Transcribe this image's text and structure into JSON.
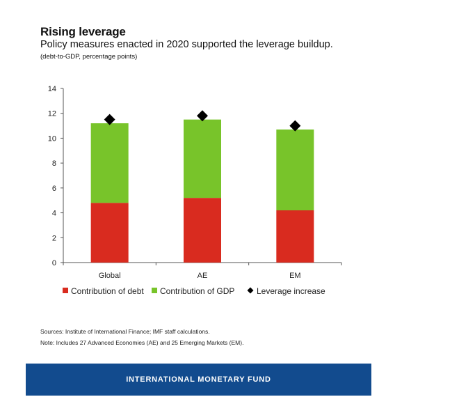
{
  "header": {
    "title": "Rising leverage",
    "subtitle": "Policy measures enacted in 2020 supported the leverage buildup.",
    "units": "(debt-to-GDP, percentage points)"
  },
  "chart_data": {
    "type": "bar",
    "stacked": true,
    "categories": [
      "Global",
      "AE",
      "EM"
    ],
    "series": [
      {
        "name": "Contribution of debt",
        "color": "#d92b1f",
        "values": [
          4.8,
          5.2,
          4.2
        ]
      },
      {
        "name": "Contribution of GDP",
        "color": "#78c42a",
        "values": [
          6.4,
          6.3,
          6.5
        ]
      }
    ],
    "markers": {
      "name": "Leverage increase",
      "color": "#000000",
      "values": [
        11.5,
        11.8,
        11.0
      ]
    },
    "ylim": [
      0,
      14
    ],
    "yticks": [
      "0",
      "2",
      "4",
      "6",
      "8",
      "10",
      "12",
      "14"
    ],
    "ytick_values": [
      0,
      2,
      4,
      6,
      8,
      10,
      12,
      14
    ],
    "legend_position": "bottom"
  },
  "notes": {
    "sources": "Sources: Institute of International Finance; IMF staff calculations.",
    "note": "Note: Includes 27 Advanced Economies (AE) and 25 Emerging Markets (EM)."
  },
  "footer": {
    "label": "INTERNATIONAL MONETARY FUND"
  }
}
